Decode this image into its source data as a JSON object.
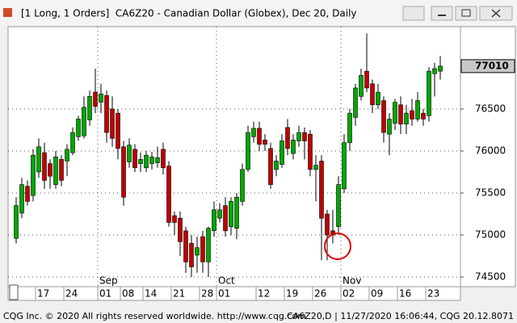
{
  "window": {
    "title": "[1 Long, 1 Orders]  CA6Z20 - Canadian Dollar (Globex), Dec 20, Daily"
  },
  "chart_data": {
    "type": "candlestick",
    "categories": [
      null,
      null,
      null,
      null,
      "17",
      null,
      null,
      null,
      null,
      "24",
      null,
      null,
      null,
      null,
      null,
      "01",
      null,
      null,
      null,
      "08",
      null,
      null,
      null,
      "14",
      null,
      null,
      null,
      null,
      "21",
      null,
      null,
      null,
      null,
      "28",
      null,
      null,
      "01",
      null,
      null,
      null,
      null,
      null,
      null,
      "12",
      null,
      null,
      null,
      null,
      "19",
      null,
      null,
      null,
      null,
      "26",
      null,
      null,
      null,
      null,
      "02",
      null,
      null,
      null,
      null,
      "09",
      null,
      null,
      null,
      null,
      "16",
      null,
      null,
      null,
      null,
      "23",
      null,
      null
    ],
    "month_labels": [
      null,
      null,
      null,
      null,
      null,
      null,
      null,
      null,
      null,
      null,
      null,
      null,
      null,
      null,
      null,
      "Sep",
      null,
      null,
      null,
      null,
      null,
      null,
      null,
      null,
      null,
      null,
      null,
      null,
      null,
      null,
      null,
      null,
      null,
      null,
      null,
      null,
      "Oct",
      null,
      null,
      null,
      null,
      null,
      null,
      null,
      null,
      null,
      null,
      null,
      null,
      null,
      null,
      null,
      null,
      null,
      null,
      null,
      null,
      null,
      "Nov",
      null,
      null,
      null,
      null,
      null,
      null,
      null,
      null,
      null,
      null,
      null,
      null,
      null,
      null,
      null,
      null,
      null
    ],
    "open": [
      74960,
      75260,
      75580,
      75470,
      75750,
      75980,
      75850,
      75600,
      75900,
      75880,
      75980,
      76170,
      76180,
      76370,
      76700,
      76580,
      76660,
      76500,
      76450,
      76050,
      75870,
      76020,
      75850,
      75800,
      75850,
      75860,
      76020,
      75820,
      75230,
      75200,
      75050,
      74900,
      74760,
      74980,
      74680,
      75050,
      75200,
      75350,
      75100,
      75080,
      75400,
      75780,
      76170,
      76270,
      76130,
      76030,
      75780,
      75840,
      76280,
      75970,
      76120,
      76220,
      76200,
      75780,
      75880,
      75250,
      75050,
      75100,
      75550,
      76100,
      76400,
      76650,
      76950,
      76800,
      76550,
      76600,
      76200,
      76330,
      76550,
      76320,
      76480,
      76380,
      76450,
      76420,
      76920,
      76950
    ],
    "high": [
      75450,
      75680,
      75650,
      76020,
      76150,
      76100,
      75900,
      76000,
      75950,
      76080,
      76280,
      76420,
      76650,
      76720,
      76980,
      76800,
      76720,
      76650,
      76500,
      76120,
      76150,
      76080,
      75980,
      76000,
      75990,
      76050,
      76100,
      75880,
      75280,
      75280,
      75100,
      75000,
      74980,
      75050,
      75100,
      75400,
      75380,
      75450,
      75450,
      75500,
      75850,
      76300,
      76350,
      76350,
      76200,
      76100,
      75950,
      76200,
      76380,
      76200,
      76300,
      76280,
      76250,
      75950,
      75950,
      75300,
      75300,
      75700,
      76200,
      76500,
      76800,
      76980,
      77400,
      76850,
      76800,
      76650,
      76450,
      76620,
      76650,
      76550,
      76620,
      76700,
      76500,
      77000,
      77050,
      77130
    ],
    "low": [
      74900,
      75200,
      75350,
      75400,
      75680,
      75550,
      75550,
      75550,
      75580,
      75700,
      75950,
      76120,
      76150,
      76300,
      76450,
      76450,
      76100,
      76050,
      75900,
      75350,
      75800,
      75750,
      75750,
      75750,
      75780,
      75800,
      75720,
      75100,
      75000,
      74750,
      74550,
      74500,
      74550,
      74550,
      74500,
      74980,
      75150,
      74980,
      75000,
      74950,
      75350,
      75750,
      76100,
      76000,
      76000,
      75550,
      75700,
      75800,
      75950,
      75900,
      76050,
      75900,
      75700,
      75400,
      74700,
      74700,
      74900,
      75000,
      75500,
      76000,
      76300,
      76600,
      76700,
      76450,
      76500,
      76100,
      75950,
      76250,
      76200,
      76200,
      76300,
      76350,
      76300,
      76350,
      76650,
      76850
    ],
    "close": [
      75350,
      75600,
      75400,
      75950,
      76050,
      75650,
      75700,
      75930,
      75650,
      76020,
      76220,
      76380,
      76520,
      76650,
      76530,
      76680,
      76220,
      76150,
      76030,
      75450,
      76070,
      75800,
      75900,
      75950,
      75930,
      75920,
      75800,
      75150,
      75150,
      74920,
      74680,
      74620,
      74850,
      74680,
      75080,
      75300,
      75300,
      75050,
      75400,
      75450,
      75780,
      76220,
      76270,
      76080,
      76080,
      75600,
      75880,
      76120,
      76030,
      76130,
      76220,
      76120,
      75780,
      75830,
      75200,
      75000,
      75000,
      75600,
      76100,
      76450,
      76750,
      76900,
      76750,
      76550,
      76700,
      76220,
      76380,
      76580,
      76320,
      76450,
      76380,
      76600,
      76380,
      76950,
      76980,
      77010
    ],
    "up_color": "#00a800",
    "down_color": "#c00000",
    "ylim": [
      74385,
      77480
    ],
    "yticks": [
      74500,
      75000,
      75500,
      76000,
      76500
    ],
    "grid": true
  },
  "footer": {
    "left": "CQG Inc. © 2020 All rights reserved worldwide. http://www.cqg.com",
    "right": "CA6Z20,D | 11/27/2020 16:06:44, CQG 20.12.8071"
  }
}
